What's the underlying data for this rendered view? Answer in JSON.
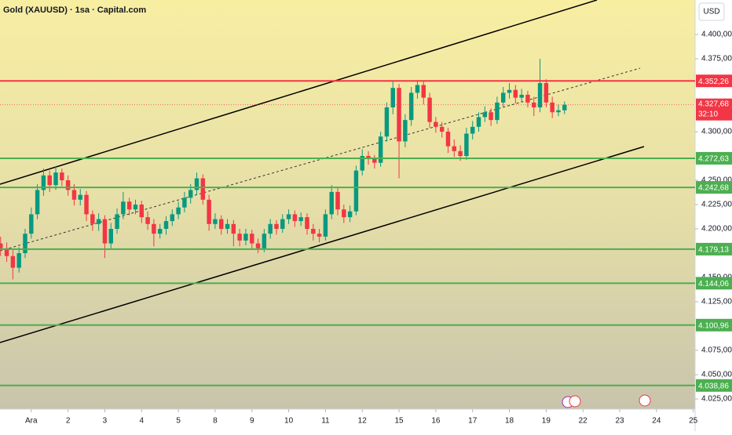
{
  "chart_data": {
    "type": "candlestick",
    "title": "Gold (XAUUSD) · 1sa · Capital.com",
    "currency": "USD",
    "up_color": "#089981",
    "down_color": "#f23645",
    "ylim": [
      4014.5,
      4435.5
    ],
    "xlim": [
      -0.1,
      113.3
    ],
    "yticks": [
      {
        "value": 4400,
        "label": "4.400,00"
      },
      {
        "value": 4375,
        "label": "4.375,00"
      },
      {
        "value": 4300,
        "label": "4.300,00"
      },
      {
        "value": 4250,
        "label": "4.250,00"
      },
      {
        "value": 4225,
        "label": "4.225,00"
      },
      {
        "value": 4200,
        "label": "4.200,00"
      },
      {
        "value": 4150,
        "label": "4.150,00"
      },
      {
        "value": 4125,
        "label": "4.125,00"
      },
      {
        "value": 4075,
        "label": "4.075,00"
      },
      {
        "value": 4050,
        "label": "4.050,00"
      },
      {
        "value": 4025,
        "label": "4.025,00"
      }
    ],
    "xticks": [
      {
        "value": 5,
        "label": "Ara"
      },
      {
        "value": 11,
        "label": "2"
      },
      {
        "value": 17,
        "label": "3"
      },
      {
        "value": 23,
        "label": "4"
      },
      {
        "value": 29,
        "label": "5"
      },
      {
        "value": 35,
        "label": "8"
      },
      {
        "value": 41,
        "label": "9"
      },
      {
        "value": 47,
        "label": "10"
      },
      {
        "value": 53,
        "label": "11"
      },
      {
        "value": 59,
        "label": "12"
      },
      {
        "value": 65,
        "label": "15"
      },
      {
        "value": 71,
        "label": "16"
      },
      {
        "value": 77,
        "label": "17"
      },
      {
        "value": 83,
        "label": "18"
      },
      {
        "value": 89,
        "label": "19"
      },
      {
        "value": 95,
        "label": "22"
      },
      {
        "value": 101,
        "label": "23"
      },
      {
        "value": 107,
        "label": "24"
      },
      {
        "value": 113,
        "label": "25"
      }
    ],
    "levels": [
      {
        "value": 4352.26,
        "label": "4.352,26",
        "color": "#f23645"
      },
      {
        "value": 4272.63,
        "label": "4.272,63",
        "color": "#4caf50"
      },
      {
        "value": 4242.68,
        "label": "4.242,68",
        "color": "#4caf50"
      },
      {
        "value": 4179.13,
        "label": "4.179,13",
        "color": "#4caf50"
      },
      {
        "value": 4144.06,
        "label": "4.144,06",
        "color": "#4caf50"
      },
      {
        "value": 4100.96,
        "label": "4.100,96",
        "color": "#4caf50"
      },
      {
        "value": 4038.86,
        "label": "4.038,86",
        "color": "#4caf50"
      }
    ],
    "current_price": {
      "value": 4327.68,
      "label": "4.327,68",
      "countdown": "32:10",
      "color": "#f23645"
    },
    "candles": [
      [
        4185,
        4192,
        4172,
        4180
      ],
      [
        4180,
        4186,
        4166,
        4172
      ],
      [
        4172,
        4178,
        4148,
        4160
      ],
      [
        4160,
        4181,
        4155,
        4175
      ],
      [
        4175,
        4200,
        4170,
        4195
      ],
      [
        4195,
        4222,
        4190,
        4215
      ],
      [
        4215,
        4246,
        4210,
        4240
      ],
      [
        4240,
        4262,
        4234,
        4255
      ],
      [
        4255,
        4260,
        4238,
        4245
      ],
      [
        4245,
        4264,
        4240,
        4258
      ],
      [
        4258,
        4262,
        4244,
        4250
      ],
      [
        4250,
        4255,
        4234,
        4240
      ],
      [
        4240,
        4246,
        4224,
        4230
      ],
      [
        4230,
        4241,
        4224,
        4235
      ],
      [
        4235,
        4239,
        4208,
        4215
      ],
      [
        4215,
        4219,
        4198,
        4205
      ],
      [
        4205,
        4216,
        4198,
        4210
      ],
      [
        4210,
        4214,
        4170,
        4185
      ],
      [
        4185,
        4206,
        4180,
        4200
      ],
      [
        4200,
        4221,
        4195,
        4215
      ],
      [
        4215,
        4238,
        4210,
        4228
      ],
      [
        4228,
        4232,
        4214,
        4220
      ],
      [
        4220,
        4230,
        4215,
        4225
      ],
      [
        4225,
        4229,
        4206,
        4212
      ],
      [
        4212,
        4218,
        4199,
        4205
      ],
      [
        4205,
        4210,
        4182,
        4195
      ],
      [
        4195,
        4205,
        4190,
        4200
      ],
      [
        4200,
        4213,
        4194,
        4208
      ],
      [
        4208,
        4220,
        4203,
        4215
      ],
      [
        4215,
        4228,
        4210,
        4222
      ],
      [
        4222,
        4238,
        4217,
        4232
      ],
      [
        4232,
        4246,
        4226,
        4240
      ],
      [
        4240,
        4258,
        4235,
        4252
      ],
      [
        4252,
        4256,
        4225,
        4230
      ],
      [
        4230,
        4235,
        4198,
        4205
      ],
      [
        4205,
        4216,
        4200,
        4210
      ],
      [
        4210,
        4214,
        4194,
        4200
      ],
      [
        4200,
        4210,
        4195,
        4205
      ],
      [
        4205,
        4209,
        4182,
        4195
      ],
      [
        4195,
        4200,
        4182,
        4188
      ],
      [
        4188,
        4200,
        4183,
        4195
      ],
      [
        4195,
        4199,
        4179,
        4185
      ],
      [
        4185,
        4190,
        4175,
        4180
      ],
      [
        4180,
        4200,
        4176,
        4195
      ],
      [
        4195,
        4210,
        4190,
        4205
      ],
      [
        4205,
        4209,
        4194,
        4200
      ],
      [
        4200,
        4215,
        4196,
        4210
      ],
      [
        4210,
        4220,
        4205,
        4215
      ],
      [
        4215,
        4219,
        4202,
        4208
      ],
      [
        4208,
        4217,
        4203,
        4212
      ],
      [
        4212,
        4216,
        4194,
        4200
      ],
      [
        4200,
        4205,
        4188,
        4195
      ],
      [
        4195,
        4200,
        4186,
        4192
      ],
      [
        4192,
        4220,
        4188,
        4215
      ],
      [
        4215,
        4245,
        4210,
        4238
      ],
      [
        4238,
        4242,
        4214,
        4220
      ],
      [
        4220,
        4225,
        4206,
        4212
      ],
      [
        4212,
        4224,
        4207,
        4218
      ],
      [
        4218,
        4265,
        4214,
        4260
      ],
      [
        4260,
        4282,
        4255,
        4275
      ],
      [
        4275,
        4280,
        4266,
        4272
      ],
      [
        4272,
        4276,
        4262,
        4268
      ],
      [
        4268,
        4300,
        4264,
        4295
      ],
      [
        4295,
        4330,
        4290,
        4325
      ],
      [
        4325,
        4352,
        4318,
        4345
      ],
      [
        4345,
        4349,
        4252,
        4290
      ],
      [
        4290,
        4318,
        4284,
        4312
      ],
      [
        4312,
        4346,
        4306,
        4340
      ],
      [
        4340,
        4352,
        4334,
        4348
      ],
      [
        4348,
        4352,
        4328,
        4335
      ],
      [
        4335,
        4340,
        4304,
        4310
      ],
      [
        4310,
        4315,
        4299,
        4305
      ],
      [
        4305,
        4310,
        4294,
        4300
      ],
      [
        4300,
        4304,
        4278,
        4285
      ],
      [
        4285,
        4292,
        4274,
        4280
      ],
      [
        4280,
        4286,
        4270,
        4275
      ],
      [
        4275,
        4304,
        4271,
        4298
      ],
      [
        4298,
        4311,
        4292,
        4305
      ],
      [
        4305,
        4320,
        4300,
        4315
      ],
      [
        4315,
        4326,
        4310,
        4320
      ],
      [
        4320,
        4324,
        4306,
        4312
      ],
      [
        4312,
        4336,
        4308,
        4330
      ],
      [
        4330,
        4346,
        4325,
        4340
      ],
      [
        4340,
        4350,
        4334,
        4343
      ],
      [
        4343,
        4348,
        4329,
        4335
      ],
      [
        4335,
        4344,
        4330,
        4338
      ],
      [
        4338,
        4342,
        4325,
        4330
      ],
      [
        4330,
        4336,
        4316,
        4325
      ],
      [
        4325,
        4375,
        4320,
        4350
      ],
      [
        4350,
        4354,
        4325,
        4330
      ],
      [
        4330,
        4336,
        4314,
        4320
      ],
      [
        4320,
        4328,
        4316,
        4322
      ],
      [
        4322,
        4331,
        4318,
        4327.68
      ]
    ]
  }
}
